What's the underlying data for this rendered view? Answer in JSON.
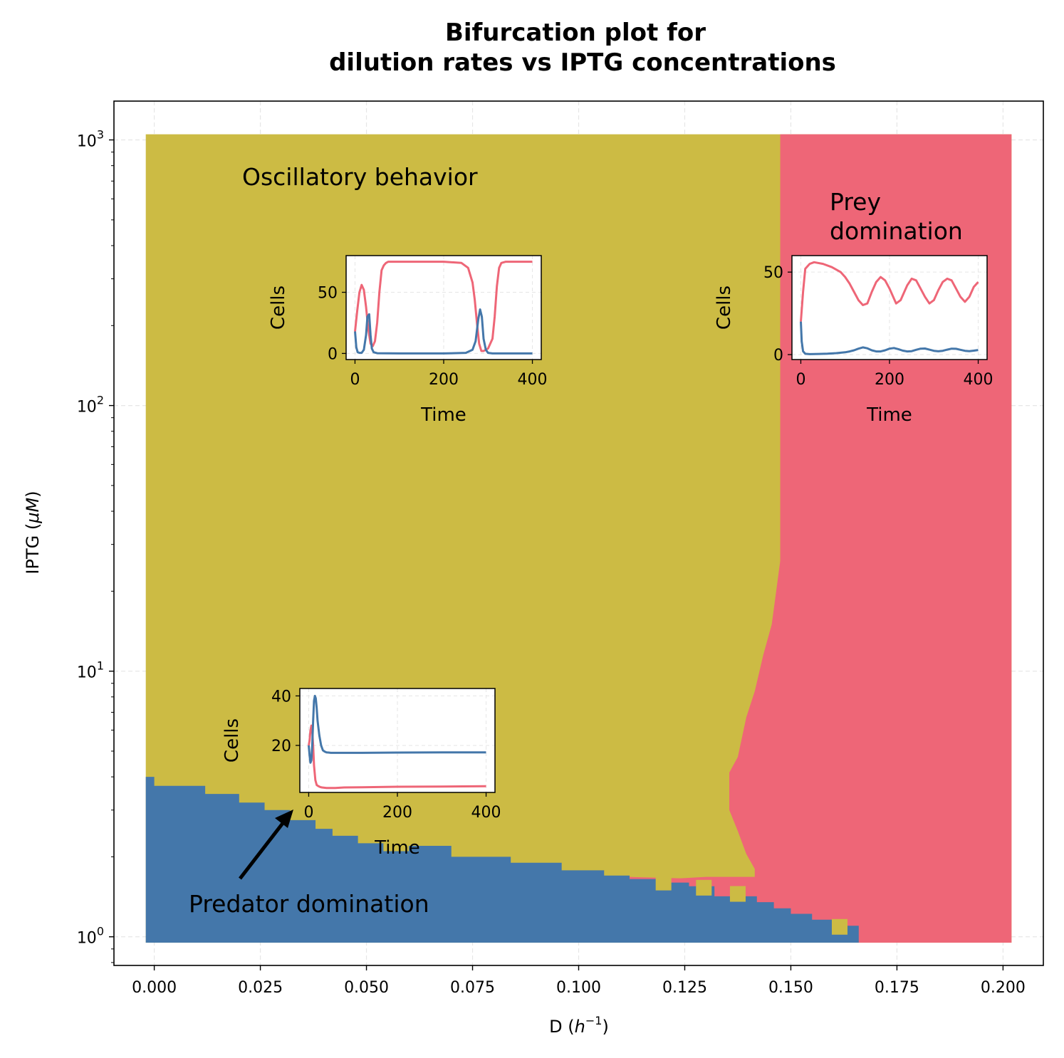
{
  "chart_data": {
    "type": "heatmap",
    "title": [
      "Bifurcation plot for",
      "dilution rates vs IPTG concentrations"
    ],
    "xlabel": "D (h⁻¹)",
    "ylabel": "IPTG (μM)",
    "xlim": [
      -0.0095,
      0.2095
    ],
    "ylim": [
      0.78,
      1400
    ],
    "yscale": "log",
    "grid": true,
    "x_ticks": [
      "0.000",
      "0.025",
      "0.050",
      "0.075",
      "0.100",
      "0.125",
      "0.150",
      "0.175",
      "0.200"
    ],
    "x_tick_values": [
      0,
      0.025,
      0.05,
      0.075,
      0.1,
      0.125,
      0.15,
      0.175,
      0.2
    ],
    "y_tick_values": [
      1,
      10,
      100,
      1000
    ],
    "y_tick_labels": [
      {
        "base": "10",
        "exp": "0"
      },
      {
        "base": "10",
        "exp": "1"
      },
      {
        "base": "10",
        "exp": "2"
      },
      {
        "base": "10",
        "exp": "3"
      }
    ],
    "x_range": [
      -0.002,
      0.202
    ],
    "y_range": [
      0.95,
      1050
    ],
    "regions": [
      {
        "name": "Oscillatory behavior",
        "color": "#ccbb44"
      },
      {
        "name": "Prey domination",
        "color": "#ee6677"
      },
      {
        "name": "Predator domination",
        "color": "#4477aa"
      }
    ],
    "predator_boundary": [
      [
        -0.002,
        4.0
      ],
      [
        0.0,
        3.7
      ],
      [
        0.012,
        3.45
      ],
      [
        0.02,
        3.2
      ],
      [
        0.026,
        3.0
      ],
      [
        0.032,
        2.75
      ],
      [
        0.038,
        2.55
      ],
      [
        0.042,
        2.4
      ],
      [
        0.048,
        2.25
      ],
      [
        0.054,
        2.1
      ],
      [
        0.06,
        2.2
      ],
      [
        0.07,
        2.0
      ],
      [
        0.084,
        1.9
      ],
      [
        0.096,
        1.78
      ],
      [
        0.106,
        1.7
      ],
      [
        0.112,
        1.65
      ],
      [
        0.12,
        1.6
      ],
      [
        0.126,
        1.55
      ],
      [
        0.132,
        1.42
      ],
      [
        0.142,
        1.35
      ],
      [
        0.146,
        1.28
      ],
      [
        0.15,
        1.22
      ],
      [
        0.155,
        1.16
      ],
      [
        0.16,
        1.1
      ],
      [
        0.166,
        0.95
      ]
    ],
    "prey_boundary": [
      [
        0.1475,
        1050
      ],
      [
        0.1475,
        26
      ],
      [
        0.1455,
        15
      ],
      [
        0.1435,
        11.5
      ],
      [
        0.1415,
        8.4
      ],
      [
        0.1395,
        6.7
      ],
      [
        0.1375,
        4.75
      ],
      [
        0.1355,
        4.15
      ],
      [
        0.1355,
        3.0
      ],
      [
        0.1375,
        2.5
      ],
      [
        0.1395,
        2.05
      ],
      [
        0.1415,
        1.8
      ],
      [
        0.1415,
        1.68
      ],
      [
        0.13,
        1.68
      ],
      [
        0.124,
        1.66
      ],
      [
        0.112,
        1.68
      ]
    ],
    "scattered_cells": [
      {
        "D": 0.12,
        "IPTG": 1.6
      },
      {
        "D": 0.1295,
        "IPTG": 1.53
      },
      {
        "D": 0.1375,
        "IPTG": 1.45
      },
      {
        "D": 0.1615,
        "IPTG": 1.09
      }
    ],
    "insets": [
      {
        "id": "oscillatory",
        "xlabel": "Time",
        "ylabel": "Cells",
        "xlim": [
          -20,
          420
        ],
        "ylim": [
          -5,
          80
        ],
        "x_ticks": [
          0,
          200,
          400
        ],
        "y_ticks": [
          0,
          50
        ],
        "series": [
          {
            "color": "#ee6677",
            "x": [
              0,
              5,
              10,
              15,
              20,
              25,
              30,
              35,
              40,
              45,
              50,
              55,
              60,
              65,
              70,
              75,
              80,
              90,
              100,
              150,
              200,
              240,
              255,
              265,
              270,
              275,
              280,
              285,
              290,
              300,
              310,
              315,
              320,
              325,
              330,
              340,
              360,
              400
            ],
            "y": [
              18,
              35,
              50,
              56,
              52,
              38,
              20,
              8,
              6,
              10,
              25,
              50,
              68,
              72,
              74,
              75,
              75,
              75,
              75,
              75,
              75,
              74,
              70,
              58,
              44,
              25,
              8,
              2,
              2,
              4,
              12,
              30,
              55,
              70,
              74,
              75,
              75,
              75
            ]
          },
          {
            "color": "#4477aa",
            "x": [
              0,
              3,
              6,
              10,
              15,
              20,
              25,
              28,
              32,
              35,
              38,
              42,
              50,
              100,
              200,
              250,
              265,
              272,
              278,
              282,
              286,
              290,
              295,
              300,
              310,
              400
            ],
            "y": [
              18,
              5,
              1,
              0.5,
              0.5,
              3,
              15,
              30,
              32,
              15,
              4,
              1,
              0.2,
              0,
              0,
              0.5,
              3,
              10,
              28,
              36,
              30,
              12,
              3,
              0.5,
              0,
              0
            ]
          }
        ]
      },
      {
        "id": "prey",
        "xlabel": "Time",
        "ylabel": "Cells",
        "xlim": [
          -20,
          420
        ],
        "ylim": [
          -3,
          60
        ],
        "x_ticks": [
          0,
          200,
          400
        ],
        "y_ticks": [
          0,
          50
        ],
        "series": [
          {
            "color": "#ee6677",
            "x": [
              0,
              5,
              10,
              20,
              30,
              50,
              70,
              90,
              100,
              110,
              120,
              130,
              140,
              150,
              160,
              170,
              180,
              190,
              200,
              210,
              215,
              225,
              240,
              250,
              260,
              270,
              280,
              290,
              300,
              310,
              320,
              330,
              340,
              350,
              360,
              370,
              380,
              390,
              400
            ],
            "y": [
              20,
              38,
              52,
              55,
              56,
              55,
              53,
              50,
              47,
              43,
              38,
              33,
              30,
              31,
              38,
              44,
              47,
              45,
              40,
              34,
              31,
              33,
              42,
              46,
              45,
              40,
              35,
              31,
              33,
              39,
              44,
              46,
              45,
              40,
              35,
              32,
              35,
              41,
              44
            ]
          },
          {
            "color": "#4477aa",
            "x": [
              0,
              2,
              5,
              10,
              20,
              40,
              60,
              80,
              100,
              110,
              120,
              130,
              140,
              150,
              160,
              170,
              180,
              190,
              200,
              210,
              220,
              230,
              240,
              250,
              260,
              270,
              280,
              290,
              300,
              310,
              320,
              330,
              340,
              350,
              360,
              370,
              380,
              390,
              400
            ],
            "y": [
              20,
              8,
              2,
              0.5,
              0.3,
              0.4,
              0.6,
              0.9,
              1.4,
              1.9,
              2.6,
              3.6,
              4.4,
              3.8,
              2.6,
              1.9,
              1.9,
              2.6,
              3.6,
              4.0,
              3.3,
              2.4,
              1.9,
              2.1,
              2.9,
              3.6,
              3.7,
              3.0,
              2.3,
              2.0,
              2.3,
              3.0,
              3.6,
              3.5,
              2.9,
              2.3,
              2.1,
              2.4,
              2.8
            ]
          }
        ]
      },
      {
        "id": "predator",
        "xlabel": "Time",
        "ylabel": "Cells",
        "xlim": [
          -20,
          420
        ],
        "ylim": [
          1,
          43
        ],
        "x_ticks": [
          0,
          200,
          400
        ],
        "y_ticks": [
          20,
          40
        ],
        "series": [
          {
            "color": "#ee6677",
            "x": [
              0,
              2,
              4,
              6,
              8,
              10,
              12,
              15,
              18,
              22,
              26,
              30,
              40,
              60,
              80,
              120,
              200,
              300,
              400
            ],
            "y": [
              20,
              22,
              26,
              28,
              26,
              20,
              12,
              6,
              4,
              3.5,
              3.2,
              3.0,
              2.8,
              2.8,
              3.0,
              3.1,
              3.3,
              3.4,
              3.5
            ]
          },
          {
            "color": "#4477aa",
            "x": [
              0,
              2,
              4,
              6,
              8,
              10,
              12,
              14,
              16,
              18,
              20,
              24,
              28,
              32,
              36,
              40,
              45,
              50,
              60,
              80,
              120,
              200,
              300,
              400
            ],
            "y": [
              20,
              16,
              13,
              14,
              20,
              30,
              38,
              40,
              39,
              35,
              30,
              24,
              20,
              18,
              17.5,
              17.2,
              17.1,
              17,
              17,
              17,
              17,
              17.1,
              17.2,
              17.2
            ]
          }
        ]
      }
    ]
  },
  "annotations": {
    "oscillatory": "Oscillatory behavior",
    "prey_line1": "Prey",
    "prey_line2": "domination",
    "predator": "Predator domination"
  }
}
